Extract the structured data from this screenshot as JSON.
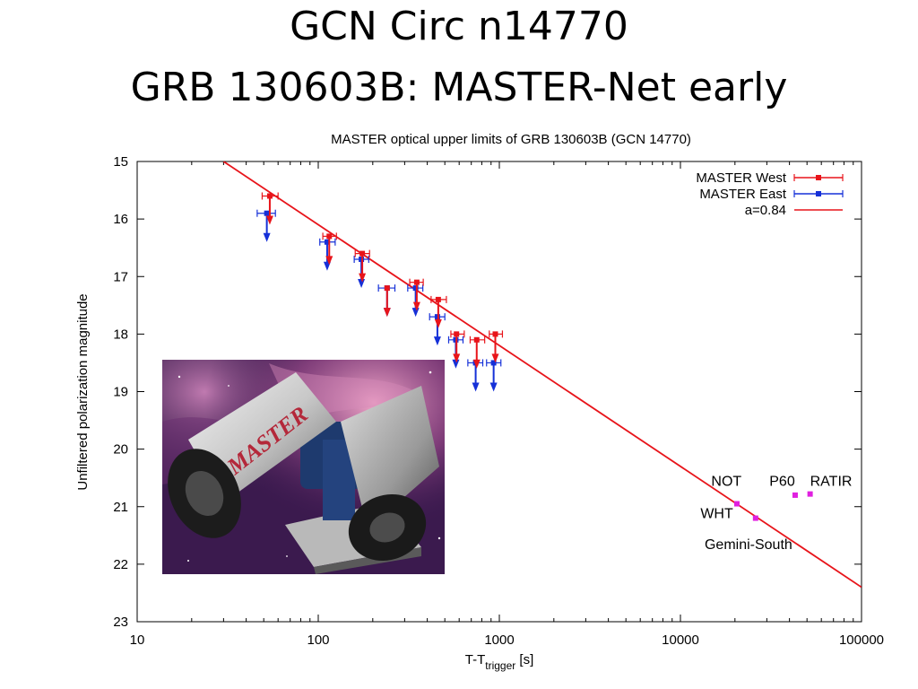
{
  "slide": {
    "title_line1": "GCN Circ n14770",
    "title_line2": "GRB 130603B: MASTER-Net early"
  },
  "photo": {
    "text": "MASTER"
  },
  "chart_data": {
    "type": "scatter",
    "title": "MASTER optical upper limits of GRB 130603B (GCN  14770)",
    "xlabel_main": "T-T",
    "xlabel_sub": "trigger",
    "xlabel_unit": " [s]",
    "ylabel": "Unfiltered polarization magnitude",
    "xscale": "log",
    "xlim": [
      10,
      100000
    ],
    "ylim": [
      15,
      23
    ],
    "y_inverted": true,
    "xticks": [
      "10",
      "100",
      "1000",
      "10000",
      "100000"
    ],
    "yticks": [
      "15",
      "16",
      "17",
      "18",
      "19",
      "20",
      "21",
      "22",
      "23"
    ],
    "legend_position": "top-right",
    "series": [
      {
        "name": "MASTER West",
        "color": "#e8141a",
        "kind": "upper-limit",
        "points": [
          {
            "x": 54,
            "y": 15.6,
            "xerr": [
              49,
              60
            ]
          },
          {
            "x": 115,
            "y": 16.3,
            "xerr": [
              106,
              126
            ]
          },
          {
            "x": 175,
            "y": 16.6,
            "xerr": [
              160,
              192
            ]
          },
          {
            "x": 240,
            "y": 17.2
          },
          {
            "x": 350,
            "y": 17.1,
            "xerr": [
              320,
              380
            ]
          },
          {
            "x": 460,
            "y": 17.4,
            "xerr": [
              420,
              510
            ]
          },
          {
            "x": 580,
            "y": 18.0,
            "xerr": [
              540,
              640
            ]
          },
          {
            "x": 750,
            "y": 18.1,
            "xerr": [
              690,
              830
            ]
          },
          {
            "x": 950,
            "y": 18.0,
            "xerr": [
              880,
              1040
            ]
          }
        ]
      },
      {
        "name": "MASTER East",
        "color": "#1530d8",
        "kind": "upper-limit",
        "points": [
          {
            "x": 52,
            "y": 15.9,
            "xerr": [
              46,
              58
            ]
          },
          {
            "x": 112,
            "y": 16.4,
            "xerr": [
              102,
              124
            ]
          },
          {
            "x": 173,
            "y": 16.7,
            "xerr": [
              158,
              190
            ]
          },
          {
            "x": 240,
            "y": 17.2,
            "xerr": [
              215,
              265
            ]
          },
          {
            "x": 345,
            "y": 17.2,
            "xerr": [
              312,
              378
            ]
          },
          {
            "x": 455,
            "y": 17.7,
            "xerr": [
              412,
              500
            ]
          },
          {
            "x": 575,
            "y": 18.1,
            "xerr": [
              525,
              630
            ]
          },
          {
            "x": 740,
            "y": 18.5,
            "xerr": [
              670,
              810
            ]
          },
          {
            "x": 930,
            "y": 18.5,
            "xerr": [
              850,
              1020
            ]
          }
        ]
      },
      {
        "name": "a=0.84",
        "color": "#e8141a",
        "kind": "line",
        "points": [
          {
            "x": 30,
            "y": 15.0
          },
          {
            "x": 100000,
            "y": 22.4
          }
        ]
      }
    ],
    "other_observations": {
      "color": "#e020e0",
      "points": [
        {
          "x": 20500,
          "y": 20.95
        },
        {
          "x": 26000,
          "y": 21.2
        },
        {
          "x": 43000,
          "y": 20.8
        },
        {
          "x": 52000,
          "y": 20.78
        }
      ]
    },
    "annotations": [
      {
        "text": "NOT",
        "x": 14800,
        "y": 20.56
      },
      {
        "text": "P60",
        "x": 31000,
        "y": 20.56
      },
      {
        "text": "RATIR",
        "x": 52000,
        "y": 20.56
      },
      {
        "text": "WHT",
        "x": 12900,
        "y": 21.12
      },
      {
        "text": "Gemini-South",
        "x": 13600,
        "y": 21.66
      }
    ]
  }
}
